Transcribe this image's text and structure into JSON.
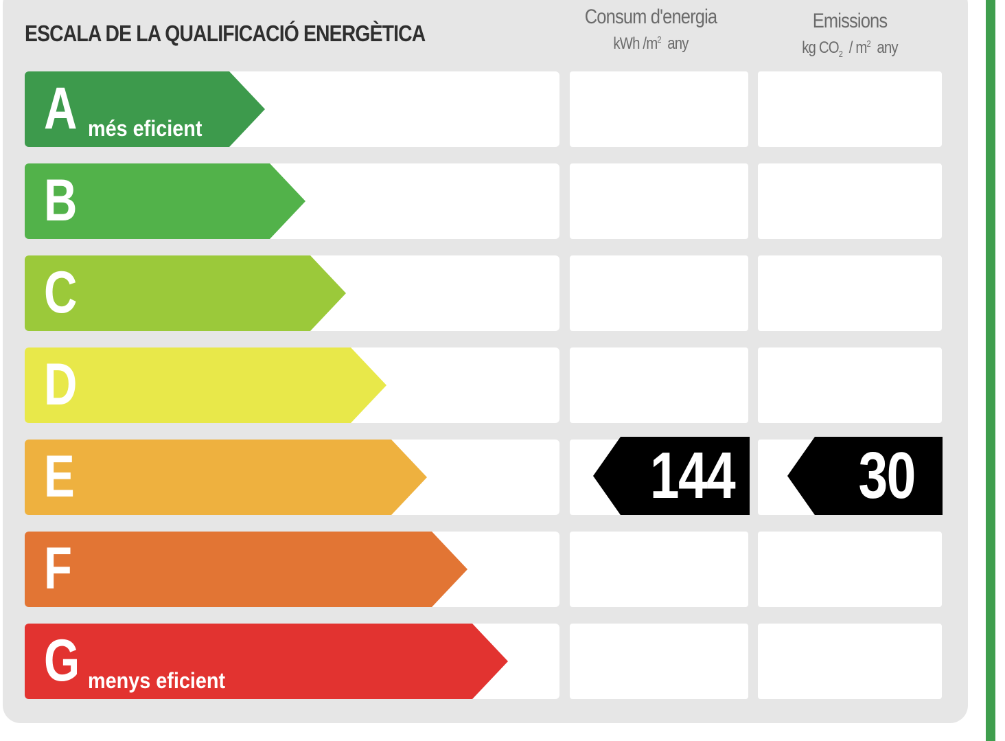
{
  "title": "ESCALA DE LA QUALIFICACIÓ ENERGÈTICA",
  "columns": {
    "consum": {
      "title": "Consum d'energia",
      "unit_a": "kWh /m",
      "unit_sup": "2",
      "unit_b": "any"
    },
    "emissions": {
      "title": "Emissions",
      "unit_a": "kg CO",
      "unit_sub": "2",
      "unit_c": "/ m",
      "unit_sup": "2",
      "unit_b": "any"
    }
  },
  "classes": [
    {
      "letter": "A",
      "sub": "més eficient",
      "color": "#3d9a4c"
    },
    {
      "letter": "B",
      "sub": "",
      "color": "#52b24a"
    },
    {
      "letter": "C",
      "sub": "",
      "color": "#9bc93a"
    },
    {
      "letter": "D",
      "sub": "",
      "color": "#e8e84a"
    },
    {
      "letter": "E",
      "sub": "",
      "color": "#eeb13f"
    },
    {
      "letter": "F",
      "sub": "",
      "color": "#e27534"
    },
    {
      "letter": "G",
      "sub": "menys eficient",
      "color": "#e23330"
    }
  ],
  "rating": {
    "class": "E",
    "consum_value": "144",
    "emissions_value": "30"
  }
}
